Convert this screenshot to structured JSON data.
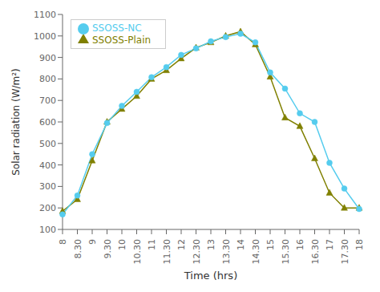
{
  "chart_data": {
    "type": "line",
    "xlabel": "Time (hrs)",
    "ylabel": "Solar radiation (W/m²)",
    "categories": [
      "8",
      "8.30",
      "9",
      "9.30",
      "10",
      "10.30",
      "11",
      "11.30",
      "12",
      "12.30",
      "13",
      "13.30",
      "14",
      "14.30",
      "15",
      "15.30",
      "16",
      "16.30",
      "17",
      "17.30",
      "18"
    ],
    "series": [
      {
        "name": "SSOSS-Plain",
        "color": "#808000",
        "marker": "triangle",
        "values": [
          185,
          240,
          420,
          600,
          660,
          720,
          800,
          840,
          895,
          945,
          970,
          1000,
          1020,
          960,
          810,
          620,
          580,
          430,
          270,
          200,
          200
        ]
      },
      {
        "name": "SSOSS-NC",
        "color": "#55CCEE",
        "marker": "circle",
        "values": [
          170,
          258,
          450,
          595,
          675,
          740,
          808,
          855,
          912,
          942,
          975,
          995,
          1010,
          970,
          830,
          755,
          640,
          600,
          410,
          290,
          195
        ]
      }
    ],
    "ylim": [
      100,
      1100
    ],
    "yticks": [
      100,
      200,
      300,
      400,
      500,
      600,
      700,
      800,
      900,
      1000,
      1100
    ],
    "grid": false,
    "legend": "upper left"
  }
}
